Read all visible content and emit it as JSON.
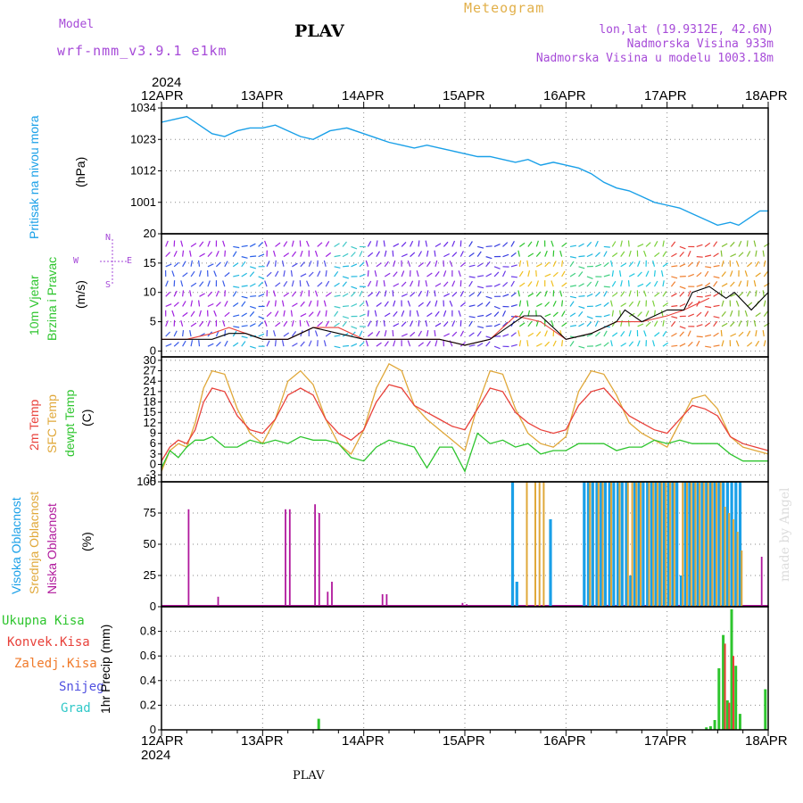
{
  "header": {
    "model_label": "Model",
    "model_name": "wrf-nmm_v3.9.1 e1km",
    "station": "PLAV",
    "meteogram": "Meteogram",
    "lonlat": "lon,lat (19.9312E, 42.6N)",
    "elev": "Nadmorska Visina 933m",
    "elev_model": "Nadmorska Visina u modelu 1003.18m"
  },
  "footer": {
    "station": "PLAV",
    "credit": "made by Angel"
  },
  "axis": {
    "year": "2024",
    "dates": [
      "12APR",
      "13APR",
      "14APR",
      "15APR",
      "16APR",
      "17APR",
      "18APR"
    ]
  },
  "panel_labels": {
    "pressure": {
      "title": "Pritisak na nivou mora",
      "unit": "(hPa)"
    },
    "wind": {
      "title1": "10m Vjetar",
      "title2": "Brzina i Pravac",
      "unit": "(m/s)",
      "compass_n": "N",
      "compass_e": "E",
      "compass_s": "S",
      "compass_w": "W"
    },
    "temp": {
      "t2m": "2m Temp",
      "sfc": "SFC Temp",
      "dewpt": "dewpt Temp",
      "unit": "(C)"
    },
    "cloud": {
      "high": "Visoka Oblacnost",
      "mid": "Srednja Oblacnost",
      "low": "Niska Oblacnost",
      "unit": "(%)"
    },
    "precip": {
      "legend": [
        "Ukupna Kisa",
        "Konvek.Kisa",
        "Zaledj.Kisa",
        "Snijeg",
        "Grad"
      ],
      "unit": "1hr Precip (mm)"
    }
  },
  "colors": {
    "pressure": "#1aa0e8",
    "t2m": "#e8413a",
    "sfc": "#e0a83a",
    "dewpt": "#2ec52e",
    "cloud_high": "#1aa0e8",
    "cloud_mid": "#e0a83a",
    "cloud_low": "#b0189c",
    "precip_total": "#2ec52e",
    "precip_conv": "#e8413a",
    "precip_frz": "#f07a2a",
    "precip_snow": "#5050e0",
    "precip_hail": "#30c8c8",
    "wind_speed": "#000000",
    "wind_gust": "#e8413a"
  },
  "chart_data": [
    {
      "type": "line",
      "title": "Pritisak na nivou mora",
      "ylabel": "(hPa)",
      "xlim": [
        0,
        144
      ],
      "ylim": [
        990,
        1034
      ],
      "yticks": [
        1001,
        1012,
        1023,
        1034
      ],
      "series": [
        {
          "name": "Pritisak na nivou mora",
          "x": [
            0,
            3,
            6,
            9,
            12,
            15,
            18,
            21,
            24,
            27,
            30,
            33,
            36,
            40,
            44,
            48,
            52,
            54,
            57,
            60,
            63,
            66,
            69,
            72,
            75,
            78,
            81,
            84,
            87,
            90,
            93,
            96,
            99,
            102,
            105,
            108,
            111,
            114,
            117,
            120,
            123,
            126,
            129,
            132,
            135,
            137,
            140,
            142,
            144
          ],
          "y": [
            1029,
            1030,
            1031,
            1028,
            1025,
            1024,
            1026,
            1027,
            1027,
            1028,
            1026,
            1024,
            1023,
            1026,
            1027,
            1025,
            1023,
            1022,
            1021,
            1020,
            1021,
            1020,
            1019,
            1018,
            1017,
            1017,
            1016,
            1015,
            1016,
            1014,
            1015,
            1014,
            1013,
            1011,
            1008,
            1006,
            1005,
            1003,
            1001,
            1000,
            999,
            997,
            995,
            993,
            994,
            993,
            996,
            998,
            998
          ]
        }
      ]
    },
    {
      "type": "line",
      "title": "10m Vjetar Brzina i Pravac",
      "ylabel": "(m/s)",
      "xlim": [
        0,
        144
      ],
      "ylim": [
        -1,
        20
      ],
      "yticks": [
        0,
        5,
        10,
        15,
        20
      ],
      "series": [
        {
          "name": "speed",
          "x": [
            0,
            6,
            12,
            16,
            20,
            24,
            30,
            36,
            42,
            48,
            54,
            60,
            66,
            72,
            78,
            84,
            86,
            90,
            96,
            102,
            108,
            110,
            114,
            120,
            124,
            126,
            130,
            134,
            136,
            140,
            144
          ],
          "y": [
            2,
            2,
            2,
            3,
            3,
            2,
            2,
            4,
            3,
            2,
            2,
            2,
            2,
            1,
            2,
            5,
            6,
            6,
            2,
            3,
            5,
            7,
            5,
            7,
            7,
            10,
            11,
            9,
            10,
            7,
            10
          ]
        },
        {
          "name": "gust",
          "x": [
            0,
            6,
            12,
            16,
            20,
            24,
            30,
            36,
            42,
            48,
            54,
            60,
            66,
            72,
            78,
            84,
            90,
            96,
            102,
            108,
            114,
            120,
            124,
            130
          ],
          "y": [
            2,
            2,
            3,
            4,
            3,
            2,
            2,
            4,
            4,
            2,
            2,
            2,
            2,
            1,
            2,
            6,
            5,
            2,
            3,
            5,
            5,
            6,
            7,
            9
          ]
        }
      ]
    },
    {
      "type": "line",
      "title": "",
      "ylabel": "(C)",
      "xlim": [
        0,
        144
      ],
      "ylim": [
        -5,
        31
      ],
      "yticks": [
        -5,
        -3,
        0,
        3,
        6,
        9,
        12,
        15,
        18,
        21,
        24,
        27,
        30
      ],
      "series": [
        {
          "name": "2m Temp",
          "x": [
            0,
            2,
            4,
            6,
            8,
            10,
            12,
            15,
            18,
            21,
            24,
            27,
            30,
            33,
            36,
            39,
            42,
            45,
            48,
            51,
            54,
            57,
            60,
            63,
            66,
            69,
            72,
            75,
            78,
            81,
            84,
            87,
            90,
            93,
            96,
            99,
            102,
            105,
            108,
            111,
            114,
            117,
            120,
            123,
            126,
            129,
            132,
            135,
            138,
            141,
            144
          ],
          "y": [
            1,
            5,
            7,
            6,
            10,
            18,
            22,
            21,
            14,
            10,
            9,
            13,
            20,
            22,
            20,
            13,
            9,
            7,
            10,
            18,
            23,
            22,
            17,
            15,
            13,
            11,
            10,
            16,
            22,
            21,
            15,
            12,
            10,
            9,
            10,
            17,
            21,
            22,
            18,
            14,
            12,
            10,
            9,
            13,
            17,
            16,
            14,
            8,
            6,
            5,
            4
          ]
        },
        {
          "name": "SFC Temp",
          "x": [
            0,
            2,
            4,
            6,
            8,
            10,
            12,
            15,
            18,
            21,
            24,
            27,
            30,
            33,
            36,
            39,
            42,
            45,
            48,
            51,
            54,
            57,
            60,
            63,
            66,
            69,
            72,
            75,
            78,
            81,
            84,
            87,
            90,
            93,
            96,
            99,
            102,
            105,
            108,
            111,
            114,
            117,
            120,
            123,
            126,
            129,
            132,
            135,
            138,
            141,
            144
          ],
          "y": [
            -2,
            4,
            6,
            5,
            12,
            22,
            27,
            26,
            16,
            9,
            6,
            13,
            24,
            27,
            23,
            13,
            6,
            3,
            10,
            22,
            29,
            27,
            17,
            13,
            10,
            7,
            4,
            17,
            27,
            26,
            16,
            9,
            6,
            5,
            8,
            21,
            27,
            26,
            20,
            12,
            9,
            7,
            5,
            12,
            19,
            20,
            16,
            8,
            5,
            4,
            3
          ]
        },
        {
          "name": "dewpt Temp",
          "x": [
            0,
            2,
            4,
            6,
            8,
            10,
            12,
            15,
            18,
            21,
            24,
            27,
            30,
            33,
            36,
            39,
            42,
            45,
            48,
            51,
            54,
            57,
            60,
            63,
            66,
            69,
            72,
            75,
            78,
            81,
            84,
            87,
            90,
            93,
            96,
            99,
            102,
            105,
            108,
            111,
            114,
            117,
            120,
            123,
            126,
            129,
            132,
            135,
            138,
            141,
            144
          ],
          "y": [
            -1,
            4,
            2,
            5,
            7,
            7,
            8,
            5,
            5,
            7,
            6,
            7,
            6,
            8,
            7,
            7,
            6,
            2,
            1,
            5,
            7,
            6,
            5,
            -1,
            5,
            5,
            -2,
            9,
            6,
            7,
            5,
            6,
            3,
            4,
            4,
            6,
            6,
            6,
            4,
            5,
            5,
            7,
            6,
            7,
            6,
            6,
            6,
            3,
            1,
            1,
            1
          ]
        }
      ]
    },
    {
      "type": "bar",
      "title": "",
      "ylabel": "(%)",
      "xlim": [
        0,
        144
      ],
      "ylim": [
        0,
        100
      ],
      "yticks": [
        0,
        25,
        50,
        75,
        100
      ],
      "series": [
        {
          "name": "Visoka Oblacnost",
          "x": [
            83,
            84,
            92,
            100,
            101,
            102,
            103,
            104,
            105,
            106,
            107,
            108,
            109,
            110,
            111,
            112,
            113,
            114,
            115,
            116,
            117,
            118,
            119,
            120,
            121,
            122,
            123,
            124,
            125,
            126,
            127,
            128,
            129,
            130,
            131,
            132,
            133,
            134,
            135,
            136,
            137
          ],
          "y": [
            100,
            20,
            70,
            100,
            100,
            100,
            100,
            100,
            100,
            100,
            100,
            100,
            100,
            100,
            25,
            100,
            100,
            100,
            100,
            100,
            100,
            100,
            100,
            100,
            100,
            100,
            25,
            100,
            100,
            100,
            100,
            100,
            100,
            100,
            100,
            100,
            100,
            100,
            100,
            100,
            100
          ]
        },
        {
          "name": "Srednja Oblacnost",
          "x": [
            86,
            88,
            89,
            90,
            101,
            103,
            104,
            106,
            108,
            110,
            111,
            112,
            113,
            115,
            116,
            117,
            118,
            119,
            120,
            121,
            123,
            124,
            125,
            126,
            127,
            128,
            129,
            130,
            131,
            132,
            133,
            134,
            135,
            136,
            137
          ],
          "y": [
            100,
            100,
            100,
            100,
            100,
            100,
            100,
            100,
            100,
            100,
            100,
            100,
            100,
            100,
            100,
            100,
            100,
            100,
            100,
            100,
            100,
            100,
            100,
            100,
            100,
            100,
            100,
            100,
            100,
            100,
            80,
            75,
            70,
            60,
            45
          ]
        },
        {
          "name": "Niska Oblacnost",
          "x": [
            6,
            13,
            29,
            30,
            36,
            37,
            39,
            40,
            52,
            53,
            71,
            72,
            142
          ],
          "y": [
            78,
            8,
            78,
            78,
            82,
            75,
            12,
            20,
            10,
            10,
            3,
            2,
            40
          ]
        }
      ]
    },
    {
      "type": "bar",
      "title": "",
      "ylabel": "1hr Precip (mm)",
      "xlim": [
        0,
        144
      ],
      "ylim": [
        0,
        1.0
      ],
      "yticks": [
        0,
        0.2,
        0.4,
        0.6,
        0.8
      ],
      "series": [
        {
          "name": "Ukupna Kisa",
          "x": [
            37,
            129,
            130,
            131,
            132,
            133,
            134,
            135,
            136,
            137,
            143
          ],
          "y": [
            0.09,
            0.02,
            0.03,
            0.08,
            0.5,
            0.77,
            0.24,
            0.98,
            0.52,
            0.13,
            0.33
          ]
        },
        {
          "name": "Konvek.Kisa",
          "x": [
            133,
            134,
            135
          ],
          "y": [
            0.7,
            0.22,
            0.6
          ]
        }
      ]
    }
  ]
}
